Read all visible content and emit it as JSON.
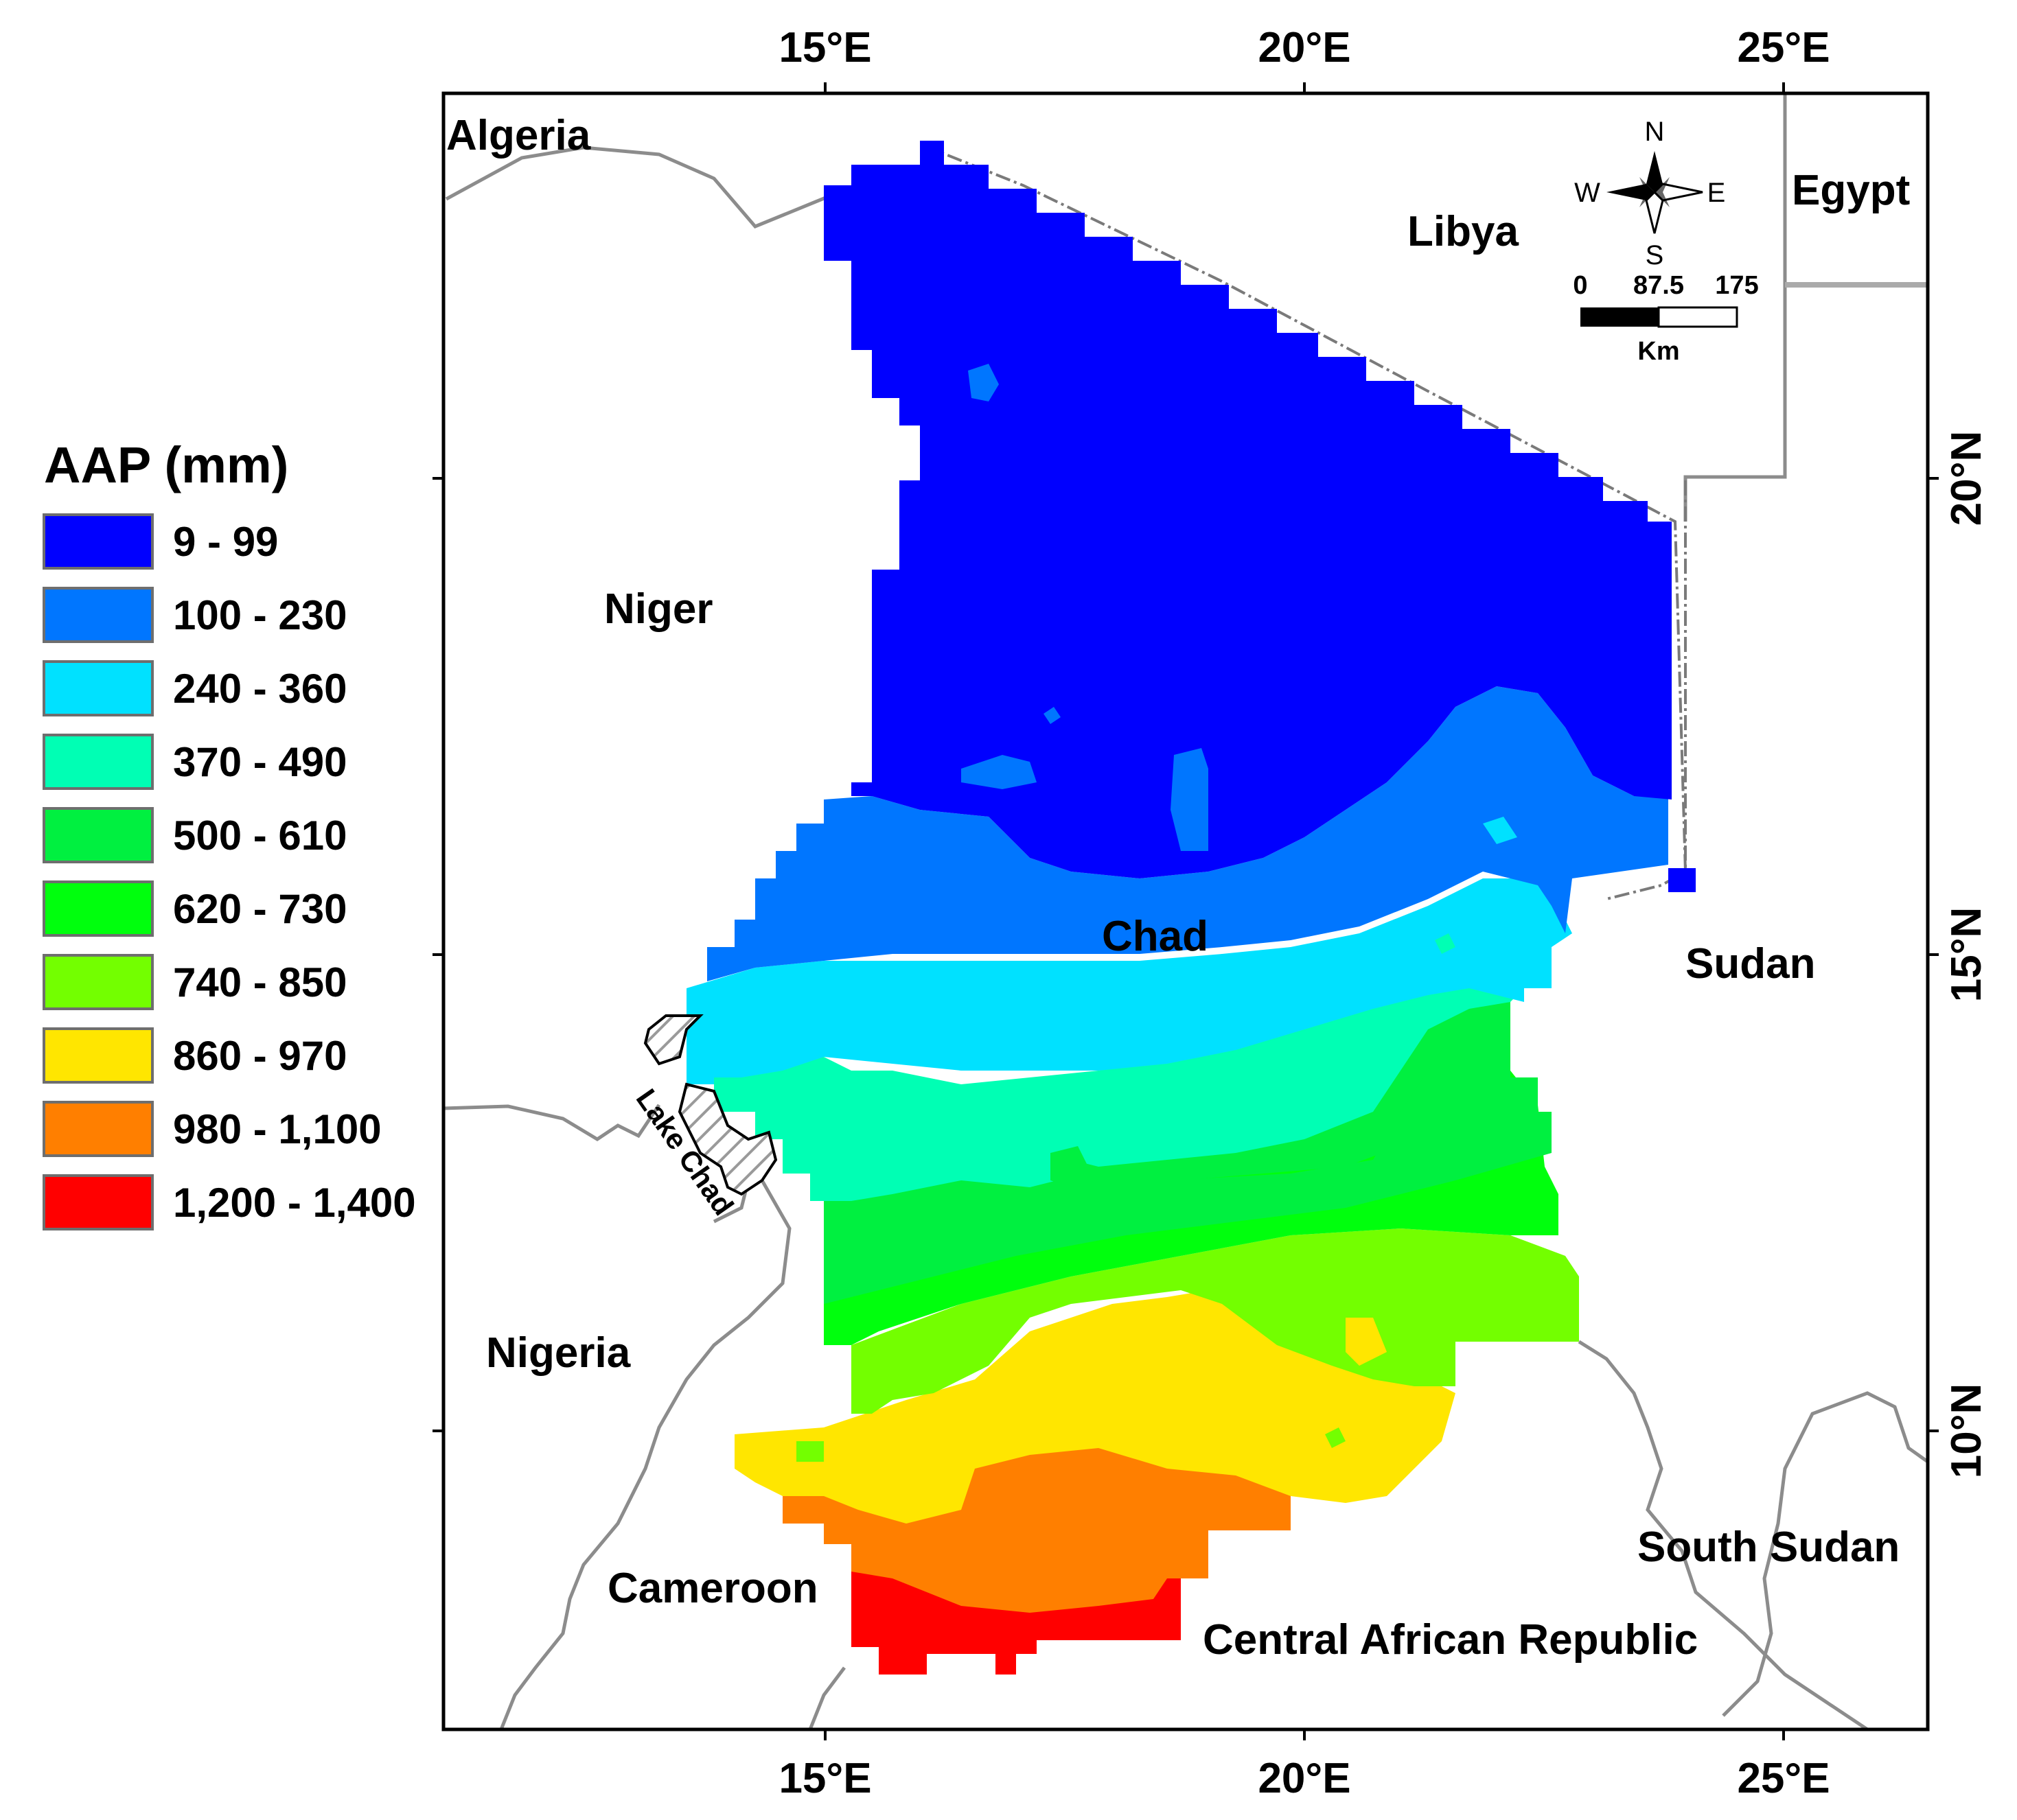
{
  "legend": {
    "title": "AAP (mm)",
    "classes": [
      {
        "range": "9 - 99",
        "color": "#0000ff"
      },
      {
        "range": "100 - 230",
        "color": "#0076ff"
      },
      {
        "range": "240 - 360",
        "color": "#00e1ff"
      },
      {
        "range": "370 - 490",
        "color": "#00ffb4"
      },
      {
        "range": "500 - 610",
        "color": "#00f040"
      },
      {
        "range": "620 - 730",
        "color": "#00ff0d"
      },
      {
        "range": "740 - 850",
        "color": "#73ff00"
      },
      {
        "range": "860 - 970",
        "color": "#ffe600"
      },
      {
        "range": "980 - 1,100",
        "color": "#ff7f00"
      },
      {
        "range": "1,200 - 1,400",
        "color": "#ff0000"
      }
    ]
  },
  "axes": {
    "top_ticks": [
      "15°E",
      "20°E",
      "25°E"
    ],
    "bottom_ticks": [
      "15°E",
      "20°E",
      "25°E"
    ],
    "right_ticks": [
      "20°N",
      "15°N",
      "10°N"
    ]
  },
  "country_labels": {
    "algeria": "Algeria",
    "libya": "Libya",
    "egypt": "Egypt",
    "niger": "Niger",
    "chad": "Chad",
    "sudan": "Sudan",
    "nigeria": "Nigeria",
    "cameroon": "Cameroon",
    "car": "Central African Republic",
    "south_sudan": "South Sudan",
    "lake_chad": "Lake Chad"
  },
  "compass": {
    "n": "N",
    "s": "S",
    "e": "E",
    "w": "W"
  },
  "scale_bar": {
    "ticks": [
      "0",
      "87.5",
      "175"
    ],
    "unit": "Km"
  }
}
